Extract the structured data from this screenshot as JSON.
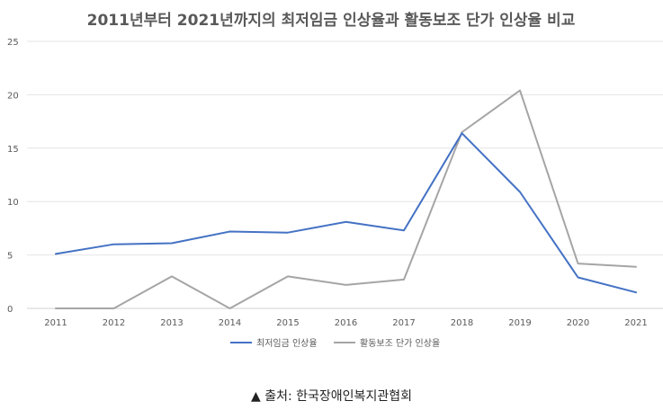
{
  "chart_data": {
    "type": "line",
    "title": "2011년부터 2021년까지의 최저임금 인상율과 활동보조 단가 인상율 비교",
    "categories": [
      "2011",
      "2012",
      "2013",
      "2014",
      "2015",
      "2016",
      "2017",
      "2018",
      "2019",
      "2020",
      "2021"
    ],
    "ylim": [
      0,
      25
    ],
    "yticks": [
      0,
      5,
      10,
      15,
      20,
      25
    ],
    "grid": true,
    "legend_position": "bottom",
    "series": [
      {
        "name": "최저임금 인상율",
        "color": "#4472c4",
        "values": [
          5.1,
          6.0,
          6.1,
          7.2,
          7.1,
          8.1,
          7.3,
          16.4,
          10.9,
          2.9,
          1.5
        ]
      },
      {
        "name": "활동보조 단가 인상율",
        "color": "#a5a5a5",
        "values": [
          0,
          0,
          3.0,
          0,
          3.0,
          2.2,
          2.7,
          16.5,
          20.4,
          4.2,
          3.9
        ]
      }
    ]
  },
  "source_note": "▲ 출처: 한국장애인복지관협회"
}
